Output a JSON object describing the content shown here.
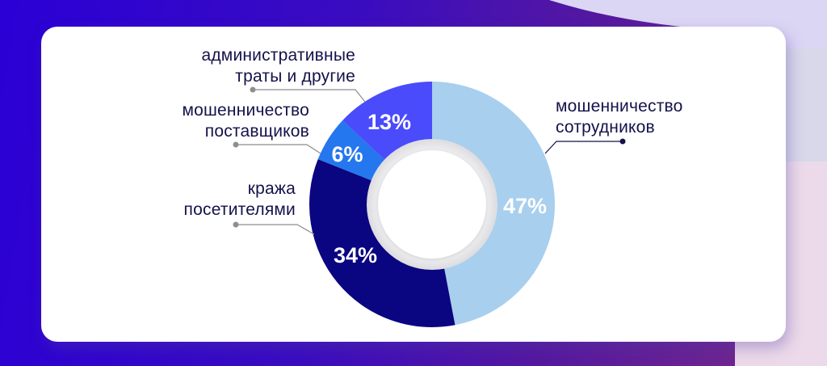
{
  "chart_data": {
    "type": "pie",
    "subtype": "donut",
    "title": "",
    "categories": [
      "мошенничество сотрудников",
      "кража посетителями",
      "мошенничество поставщиков",
      "административные траты и другие"
    ],
    "values": [
      47,
      34,
      6,
      13
    ],
    "value_labels": [
      "47%",
      "34%",
      "6%",
      "13%"
    ],
    "colors": [
      "#A9CFEE",
      "#0A0580",
      "#2477EE",
      "#4A4BFB"
    ],
    "start_angle": "12 o'clock",
    "direction": "clockwise",
    "legend_position": "leader-line callouts"
  },
  "labels": {
    "employees": {
      "line1": "мошенничество",
      "line2": "сотрудников",
      "pct": "47%"
    },
    "visitors": {
      "line1": "кража",
      "line2": "посетителями",
      "pct": "34%"
    },
    "suppliers": {
      "line1": "мошенничество",
      "line2": "поставщиков",
      "pct": "6%"
    },
    "admin": {
      "line1": "административные",
      "line2": "траты и другие",
      "pct": "13%"
    }
  },
  "colors": {
    "text": "#14124A",
    "leader_gray": "#8E8E8E",
    "leader_navy": "#14124A",
    "card_bg": "#FFFFFF"
  }
}
